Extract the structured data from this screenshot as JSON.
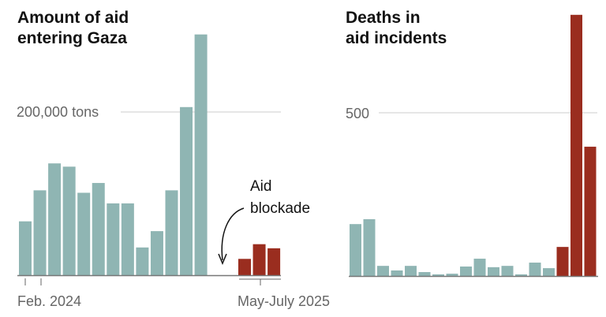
{
  "chart_data": [
    {
      "type": "bar",
      "title": "Amount of aid entering Gaza",
      "title_lines": [
        "Amount of aid",
        "entering Gaza"
      ],
      "ylabel": "",
      "y_tick_label": "200,000 tons",
      "y_tick_value": 200000,
      "ylim": [
        0,
        300000
      ],
      "x_tick_labels": [
        "Feb. 2024",
        "May-July 2025"
      ],
      "annotation": [
        "Aid",
        "blockade"
      ],
      "series": [
        {
          "color": "#8fb5b3",
          "values": [
            66000,
            104000,
            137000,
            133000,
            101000,
            113000,
            88000,
            88000,
            34000,
            54000,
            104000,
            206000,
            295000
          ]
        },
        {
          "color": "#9a2d1f",
          "values": [
            20000,
            38000,
            33000
          ]
        }
      ]
    },
    {
      "type": "bar",
      "title": "Deaths in aid incidents",
      "title_lines": [
        "Deaths in",
        "aid incidents"
      ],
      "y_tick_label": "500",
      "y_tick_value": 500,
      "ylim": [
        0,
        800
      ],
      "series": [
        {
          "color": "#8fb5b3",
          "values": [
            159,
            174,
            31,
            17,
            31,
            12,
            5,
            7,
            29,
            53,
            27,
            31,
            5,
            41,
            24
          ]
        },
        {
          "color": "#9a2d1f",
          "values": [
            89,
            800,
            396
          ]
        }
      ]
    }
  ]
}
